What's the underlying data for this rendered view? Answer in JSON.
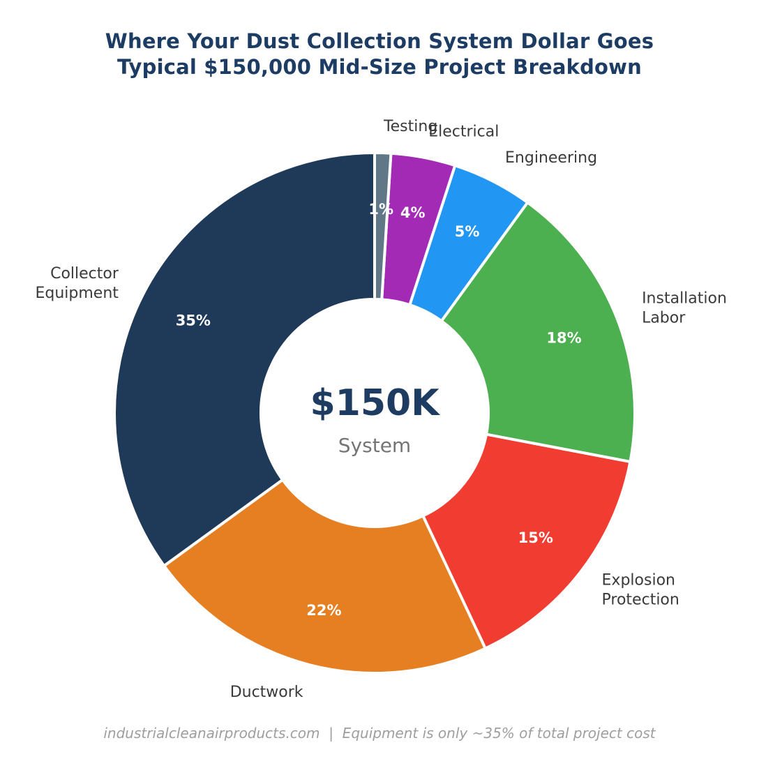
{
  "chart_data": {
    "type": "pie",
    "variant": "donut",
    "title": "Where Your Dust Collection System Dollar Goes",
    "subtitle": "Typical $150,000 Mid-Size Project Breakdown",
    "start_angle": 90,
    "direction": "counterclockwise",
    "categories": [
      "Collector Equipment",
      "Ductwork",
      "Explosion Protection",
      "Installation Labor",
      "Engineering",
      "Electrical",
      "Testing"
    ],
    "values": [
      35,
      22,
      15,
      18,
      5,
      4,
      1
    ],
    "value_labels": [
      "35%",
      "22%",
      "15%",
      "18%",
      "5%",
      "4%",
      "1%"
    ],
    "colors": [
      "#1f3a58",
      "#e67e22",
      "#f13c31",
      "#4caf50",
      "#2196f3",
      "#a22ab5",
      "#5f7787"
    ],
    "category_label_lines": [
      [
        "Collector",
        "Equipment"
      ],
      [
        "Ductwork"
      ],
      [
        "Explosion",
        "Protection"
      ],
      [
        "Installation",
        "Labor"
      ],
      [
        "Engineering"
      ],
      [
        "Electrical"
      ],
      [
        "Testing"
      ]
    ],
    "center": {
      "value": "$150K",
      "label": "System"
    },
    "footer": "industrialcleanairproducts.com  |  Equipment is only ~35% of total project cost",
    "text_colors": {
      "title": "#1c3c63",
      "center_value": "#1e3c62",
      "center_label": "#757575",
      "category_label": "#3a3a3a",
      "value_label": "#ffffff",
      "footer": "#9e9e9e"
    },
    "legend": "none",
    "background": "#ffffff"
  }
}
